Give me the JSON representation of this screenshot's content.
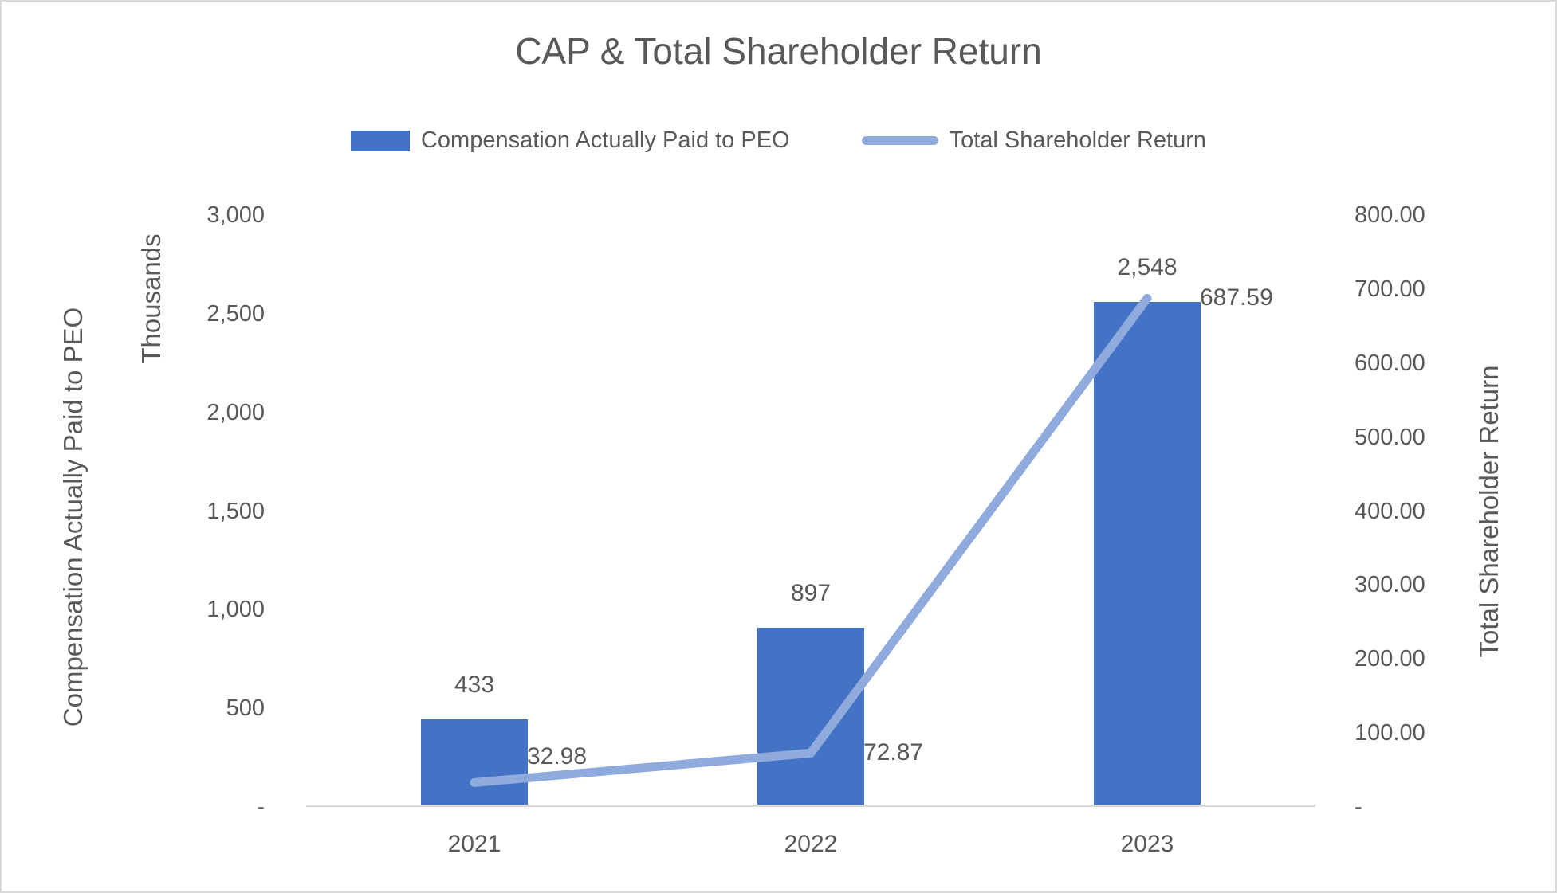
{
  "chart": {
    "title": "CAP & Total Shareholder Return"
  },
  "legend": {
    "items": [
      {
        "label": "Compensation Actually Paid to PEO",
        "swatch": "bar",
        "color": "#4472C4"
      },
      {
        "label": "Total Shareholder Return",
        "swatch": "line",
        "color": "#8FAADC"
      }
    ]
  },
  "axes": {
    "left": {
      "title": "Compensation Actually Paid to PEO",
      "units_label": "Thousands"
    },
    "right": {
      "title": "Total Shareholder Return"
    }
  },
  "chart_data": {
    "type": "bar",
    "subtype": "combo bar+line, dual y-axes",
    "title": "CAP & Total Shareholder Return",
    "categories": [
      "2021",
      "2022",
      "2023"
    ],
    "series": [
      {
        "name": "Compensation Actually Paid to PEO",
        "type": "bar",
        "yaxis": "left",
        "values": [
          433,
          897,
          2548
        ],
        "data_labels": [
          "433",
          "897",
          "2,548"
        ],
        "color": "#4472C4"
      },
      {
        "name": "Total Shareholder Return",
        "type": "line",
        "yaxis": "right",
        "values": [
          32.98,
          72.87,
          687.59
        ],
        "data_labels": [
          "32.98",
          "72.87",
          "687.59"
        ],
        "color": "#8FAADC"
      }
    ],
    "left_axis": {
      "label": "Compensation Actually Paid to PEO",
      "units": "Thousands",
      "ylim": [
        0,
        3000
      ],
      "ticks": [
        {
          "label": "3,000",
          "value": 3000
        },
        {
          "label": "2,500",
          "value": 2500
        },
        {
          "label": "2,000",
          "value": 2000
        },
        {
          "label": "1,500",
          "value": 1500
        },
        {
          "label": "1,000",
          "value": 1000
        },
        {
          "label": "500",
          "value": 500
        },
        {
          "label": "-",
          "value": 0
        }
      ]
    },
    "right_axis": {
      "label": "Total Shareholder Return",
      "ylim": [
        0,
        800
      ],
      "ticks": [
        {
          "label": "800.00",
          "value": 800
        },
        {
          "label": "700.00",
          "value": 700
        },
        {
          "label": "600.00",
          "value": 600
        },
        {
          "label": "500.00",
          "value": 500
        },
        {
          "label": "400.00",
          "value": 400
        },
        {
          "label": "300.00",
          "value": 300
        },
        {
          "label": "200.00",
          "value": 200
        },
        {
          "label": "100.00",
          "value": 100
        },
        {
          "label": "-",
          "value": 0
        }
      ]
    },
    "grid": false,
    "legend_position": "top"
  }
}
